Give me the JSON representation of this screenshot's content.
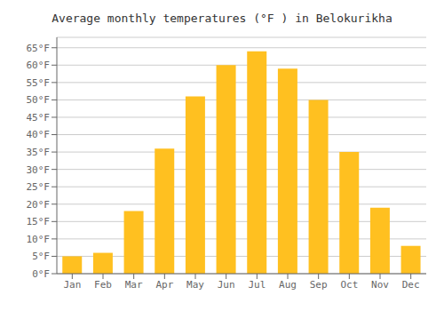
{
  "chart_data": {
    "type": "bar",
    "title": "Average monthly temperatures (°F ) in Belokurikha",
    "categories": [
      "Jan",
      "Feb",
      "Mar",
      "Apr",
      "May",
      "Jun",
      "Jul",
      "Aug",
      "Sep",
      "Oct",
      "Nov",
      "Dec"
    ],
    "values": [
      5,
      6,
      18,
      36,
      51,
      60,
      64,
      59,
      50,
      35,
      19,
      8
    ],
    "color": "#FFC020",
    "ylim": [
      0,
      68
    ],
    "yticks": [
      {
        "value": 0,
        "label": "0°F"
      },
      {
        "value": 5,
        "label": "5°F"
      },
      {
        "value": 10,
        "label": "10°F"
      },
      {
        "value": 15,
        "label": "15°F"
      },
      {
        "value": 20,
        "label": "20°F"
      },
      {
        "value": 25,
        "label": "25°F"
      },
      {
        "value": 30,
        "label": "30°F"
      },
      {
        "value": 35,
        "label": "35°F"
      },
      {
        "value": 40,
        "label": "40°F"
      },
      {
        "value": 45,
        "label": "45°F"
      },
      {
        "value": 50,
        "label": "50°F"
      },
      {
        "value": 55,
        "label": "55°F"
      },
      {
        "value": 60,
        "label": "60°F"
      },
      {
        "value": 65,
        "label": "65°F"
      }
    ],
    "grid": true
  }
}
